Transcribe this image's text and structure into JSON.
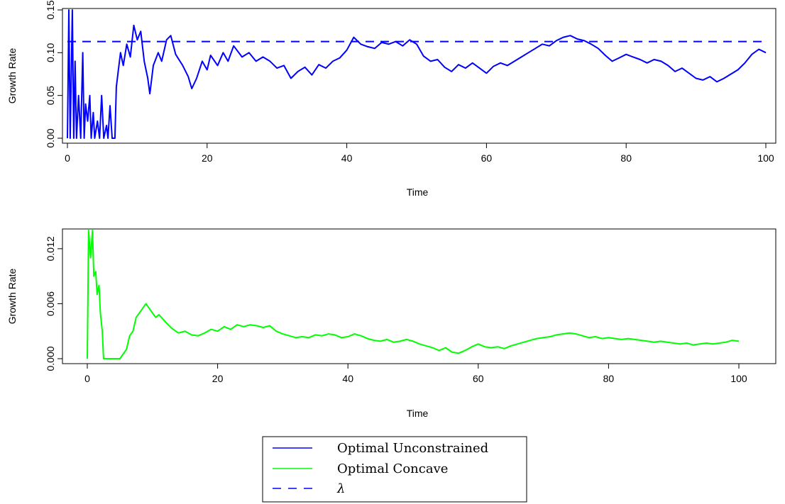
{
  "chart_data": [
    {
      "type": "line",
      "xlabel": "Time",
      "ylabel": "Growth Rate",
      "xlim": [
        0,
        100
      ],
      "ylim": [
        0,
        0.15
      ],
      "x_ticks": [
        "0",
        "20",
        "40",
        "60",
        "80",
        "100"
      ],
      "y_ticks": [
        "0.00",
        "0.05",
        "0.10",
        "0.15"
      ],
      "grid": false,
      "series": [
        {
          "name": "Optimal Unconstrained",
          "color": "#0000ff",
          "style": "solid",
          "points": [
            [
              0,
              0.0
            ],
            [
              0.2,
              0.15
            ],
            [
              0.4,
              0.0
            ],
            [
              0.7,
              0.15
            ],
            [
              0.9,
              0.0
            ],
            [
              1.1,
              0.09
            ],
            [
              1.3,
              0.0
            ],
            [
              1.6,
              0.05
            ],
            [
              1.9,
              0.0
            ],
            [
              2.2,
              0.1
            ],
            [
              2.4,
              0.0
            ],
            [
              2.6,
              0.04
            ],
            [
              2.9,
              0.02
            ],
            [
              3.2,
              0.05
            ],
            [
              3.4,
              0.0
            ],
            [
              3.7,
              0.03
            ],
            [
              3.9,
              0.0
            ],
            [
              4.3,
              0.02
            ],
            [
              4.6,
              0.0
            ],
            [
              4.9,
              0.05
            ],
            [
              5.2,
              0.0
            ],
            [
              5.6,
              0.015
            ],
            [
              5.8,
              0.0
            ],
            [
              6.1,
              0.038
            ],
            [
              6.4,
              0.0
            ],
            [
              6.8,
              0.0
            ],
            [
              7.0,
              0.06
            ],
            [
              7.3,
              0.08
            ],
            [
              7.6,
              0.1
            ],
            [
              8.0,
              0.085
            ],
            [
              8.5,
              0.11
            ],
            [
              9.0,
              0.095
            ],
            [
              9.5,
              0.132
            ],
            [
              10,
              0.115
            ],
            [
              10.5,
              0.125
            ],
            [
              11,
              0.09
            ],
            [
              11.5,
              0.07
            ],
            [
              11.8,
              0.052
            ],
            [
              12.3,
              0.085
            ],
            [
              13,
              0.1
            ],
            [
              13.5,
              0.09
            ],
            [
              14.2,
              0.115
            ],
            [
              14.8,
              0.12
            ],
            [
              15.5,
              0.098
            ],
            [
              16.5,
              0.085
            ],
            [
              17.3,
              0.072
            ],
            [
              17.8,
              0.058
            ],
            [
              18.5,
              0.07
            ],
            [
              19.3,
              0.09
            ],
            [
              20,
              0.08
            ],
            [
              20.5,
              0.097
            ],
            [
              21.5,
              0.085
            ],
            [
              22.3,
              0.1
            ],
            [
              23,
              0.09
            ],
            [
              23.8,
              0.108
            ],
            [
              25,
              0.095
            ],
            [
              26,
              0.1
            ],
            [
              27,
              0.09
            ],
            [
              28,
              0.095
            ],
            [
              29,
              0.09
            ],
            [
              30,
              0.082
            ],
            [
              31,
              0.085
            ],
            [
              32,
              0.07
            ],
            [
              33,
              0.078
            ],
            [
              34,
              0.083
            ],
            [
              35,
              0.074
            ],
            [
              36,
              0.086
            ],
            [
              37,
              0.082
            ],
            [
              38,
              0.09
            ],
            [
              39,
              0.094
            ],
            [
              40,
              0.103
            ],
            [
              41,
              0.118
            ],
            [
              42,
              0.11
            ],
            [
              43,
              0.107
            ],
            [
              44,
              0.105
            ],
            [
              45,
              0.112
            ],
            [
              46,
              0.11
            ],
            [
              47,
              0.113
            ],
            [
              48,
              0.108
            ],
            [
              49,
              0.115
            ],
            [
              50,
              0.11
            ],
            [
              51,
              0.096
            ],
            [
              52,
              0.09
            ],
            [
              53,
              0.092
            ],
            [
              54,
              0.083
            ],
            [
              55,
              0.078
            ],
            [
              56,
              0.086
            ],
            [
              57,
              0.082
            ],
            [
              58,
              0.088
            ],
            [
              59,
              0.082
            ],
            [
              60,
              0.076
            ],
            [
              61,
              0.084
            ],
            [
              62,
              0.088
            ],
            [
              63,
              0.085
            ],
            [
              64,
              0.09
            ],
            [
              65,
              0.095
            ],
            [
              66,
              0.1
            ],
            [
              67,
              0.105
            ],
            [
              68,
              0.11
            ],
            [
              69,
              0.108
            ],
            [
              70,
              0.114
            ],
            [
              71,
              0.118
            ],
            [
              72,
              0.12
            ],
            [
              73,
              0.116
            ],
            [
              74,
              0.114
            ],
            [
              75,
              0.11
            ],
            [
              76,
              0.105
            ],
            [
              77,
              0.097
            ],
            [
              78,
              0.09
            ],
            [
              79,
              0.094
            ],
            [
              80,
              0.098
            ],
            [
              81,
              0.095
            ],
            [
              82,
              0.092
            ],
            [
              83,
              0.088
            ],
            [
              84,
              0.092
            ],
            [
              85,
              0.09
            ],
            [
              86,
              0.085
            ],
            [
              87,
              0.078
            ],
            [
              88,
              0.082
            ],
            [
              89,
              0.076
            ],
            [
              90,
              0.07
            ],
            [
              91,
              0.068
            ],
            [
              92,
              0.072
            ],
            [
              93,
              0.066
            ],
            [
              94,
              0.07
            ],
            [
              95,
              0.075
            ],
            [
              96,
              0.08
            ],
            [
              97,
              0.088
            ],
            [
              98,
              0.098
            ],
            [
              99,
              0.104
            ],
            [
              100,
              0.1
            ]
          ]
        },
        {
          "name": "λ",
          "color": "#0000ff",
          "style": "dashed",
          "points": [
            [
              0,
              0.113
            ],
            [
              100,
              0.113
            ]
          ]
        }
      ]
    },
    {
      "type": "line",
      "xlabel": "Time",
      "ylabel": "Growth Rate",
      "xlim": [
        0,
        100
      ],
      "ylim": [
        0,
        0.014
      ],
      "x_ticks": [
        "0",
        "20",
        "40",
        "60",
        "80",
        "100"
      ],
      "y_ticks": [
        "0.000",
        "0.006",
        "0.012"
      ],
      "grid": false,
      "series": [
        {
          "name": "Optimal Concave",
          "color": "#00ff00",
          "style": "solid",
          "points": [
            [
              0,
              0.0
            ],
            [
              0.2,
              0.014
            ],
            [
              0.5,
              0.011
            ],
            [
              0.8,
              0.014
            ],
            [
              1.0,
              0.009
            ],
            [
              1.3,
              0.0095
            ],
            [
              1.5,
              0.007
            ],
            [
              1.8,
              0.008
            ],
            [
              2.0,
              0.005
            ],
            [
              2.3,
              0.003
            ],
            [
              2.5,
              0.0
            ],
            [
              3.0,
              0.0
            ],
            [
              3.5,
              0.0
            ],
            [
              4.0,
              0.0
            ],
            [
              4.5,
              0.0
            ],
            [
              5.0,
              0.0
            ],
            [
              5.5,
              0.0005
            ],
            [
              6.0,
              0.001
            ],
            [
              6.5,
              0.0025
            ],
            [
              7.0,
              0.003
            ],
            [
              7.5,
              0.0045
            ],
            [
              8,
              0.005
            ],
            [
              8.5,
              0.0055
            ],
            [
              9,
              0.006
            ],
            [
              9.5,
              0.0055
            ],
            [
              10,
              0.005
            ],
            [
              10.5,
              0.0045
            ],
            [
              11,
              0.0048
            ],
            [
              12,
              0.004
            ],
            [
              13,
              0.0033
            ],
            [
              14,
              0.0028
            ],
            [
              15,
              0.003
            ],
            [
              16,
              0.0026
            ],
            [
              17,
              0.0025
            ],
            [
              18,
              0.0028
            ],
            [
              19,
              0.0032
            ],
            [
              20,
              0.003
            ],
            [
              21,
              0.0035
            ],
            [
              22,
              0.0032
            ],
            [
              23,
              0.0037
            ],
            [
              24,
              0.0035
            ],
            [
              25,
              0.0037
            ],
            [
              26,
              0.0036
            ],
            [
              27,
              0.0034
            ],
            [
              28,
              0.0036
            ],
            [
              29,
              0.003
            ],
            [
              30,
              0.0027
            ],
            [
              31,
              0.0025
            ],
            [
              32,
              0.0023
            ],
            [
              33,
              0.0024
            ],
            [
              34,
              0.0023
            ],
            [
              35,
              0.0026
            ],
            [
              36,
              0.0025
            ],
            [
              37,
              0.0027
            ],
            [
              38,
              0.0026
            ],
            [
              39,
              0.0023
            ],
            [
              40,
              0.0024
            ],
            [
              41,
              0.0027
            ],
            [
              42,
              0.0025
            ],
            [
              43,
              0.0022
            ],
            [
              44,
              0.002
            ],
            [
              45,
              0.0019
            ],
            [
              46,
              0.0021
            ],
            [
              47,
              0.0018
            ],
            [
              48,
              0.0019
            ],
            [
              49,
              0.0021
            ],
            [
              50,
              0.0019
            ],
            [
              51,
              0.0016
            ],
            [
              52,
              0.0014
            ],
            [
              53,
              0.0012
            ],
            [
              54,
              0.0009
            ],
            [
              55,
              0.0012
            ],
            [
              56,
              0.0007
            ],
            [
              57,
              0.0006
            ],
            [
              58,
              0.0009
            ],
            [
              59,
              0.0013
            ],
            [
              60,
              0.0016
            ],
            [
              61,
              0.0013
            ],
            [
              62,
              0.0012
            ],
            [
              63,
              0.0013
            ],
            [
              64,
              0.0011
            ],
            [
              65,
              0.0014
            ],
            [
              66,
              0.0016
            ],
            [
              67,
              0.0018
            ],
            [
              68,
              0.002
            ],
            [
              69,
              0.0022
            ],
            [
              70,
              0.0023
            ],
            [
              71,
              0.0024
            ],
            [
              72,
              0.0026
            ],
            [
              73,
              0.0027
            ],
            [
              74,
              0.0028
            ],
            [
              75,
              0.0027
            ],
            [
              76,
              0.0025
            ],
            [
              77,
              0.0023
            ],
            [
              78,
              0.0024
            ],
            [
              79,
              0.0022
            ],
            [
              80,
              0.0023
            ],
            [
              81,
              0.0022
            ],
            [
              82,
              0.0021
            ],
            [
              83,
              0.0022
            ],
            [
              84,
              0.0021
            ],
            [
              85,
              0.002
            ],
            [
              86,
              0.0019
            ],
            [
              87,
              0.0018
            ],
            [
              88,
              0.0019
            ],
            [
              89,
              0.0018
            ],
            [
              90,
              0.0017
            ],
            [
              91,
              0.0016
            ],
            [
              92,
              0.0017
            ],
            [
              93,
              0.0015
            ],
            [
              94,
              0.0016
            ],
            [
              95,
              0.0017
            ],
            [
              96,
              0.0016
            ],
            [
              97,
              0.0017
            ],
            [
              98,
              0.0018
            ],
            [
              99,
              0.002
            ],
            [
              100,
              0.0019
            ]
          ]
        }
      ]
    }
  ],
  "legend": {
    "entries": [
      {
        "label": "Optimal Unconstrained",
        "color": "#0000ff",
        "style": "solid"
      },
      {
        "label": "Optimal Concave",
        "color": "#00ff00",
        "style": "solid"
      },
      {
        "label": "λ",
        "color": "#0000ff",
        "style": "dashed"
      }
    ]
  }
}
